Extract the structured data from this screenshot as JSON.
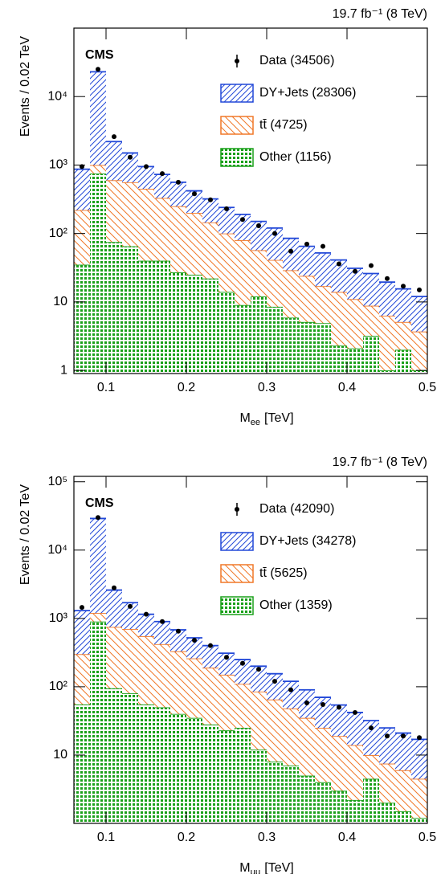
{
  "chart_data": [
    {
      "type": "histogram",
      "lumi": "19.7 fb⁻¹ (8 TeV)",
      "label": "CMS",
      "x_label": [
        "M",
        "ee",
        "[TeV]"
      ],
      "y_label": "Events / 0.02 TeV",
      "log_y": true,
      "legend": "upper right",
      "bins": [
        0.06,
        0.08,
        0.1,
        0.12,
        0.14,
        0.16,
        0.18,
        0.2,
        0.22,
        0.24,
        0.26,
        0.28,
        0.3,
        0.32,
        0.34,
        0.36,
        0.38,
        0.4,
        0.42,
        0.44,
        0.46,
        0.48,
        0.5
      ],
      "xlim": [
        0.06,
        0.5
      ],
      "xticks": [
        0.1,
        0.2,
        0.3,
        0.4,
        0.5
      ],
      "ylim": [
        0.9,
        100000
      ],
      "yticks": [
        1,
        10,
        {
          "value": 100,
          "label": "10²"
        },
        {
          "value": 1000,
          "label": "10³"
        },
        {
          "value": 10000,
          "label": "10⁴"
        }
      ],
      "series": [
        {
          "name": "Data (34506)",
          "color": "#000000",
          "style": "points",
          "values": [
            950,
            25000,
            2600,
            1300,
            950,
            750,
            560,
            380,
            310,
            230,
            160,
            130,
            100,
            55,
            70,
            65,
            36,
            28,
            34,
            22,
            17,
            15
          ]
        },
        {
          "name": "DY+Jets (28306)",
          "color": "#2248d8",
          "style": "stack",
          "pattern": "forward-hatch",
          "values": [
            650,
            22000,
            1600,
            940,
            500,
            400,
            310,
            220,
            175,
            140,
            110,
            93,
            79,
            56,
            41,
            35,
            27,
            20,
            17.2,
            13.2,
            10.4,
            8.3
          ]
        },
        {
          "name": "tt̄ (4725)",
          "color": "#f07828",
          "style": "stack",
          "pattern": "back-hatch",
          "values": [
            185,
            250,
            525,
            495,
            410,
            290,
            223,
            175,
            123,
            86,
            71,
            45,
            32.5,
            23.1,
            18.9,
            12.1,
            11.7,
            8.9,
            5.6,
            5.3,
            3.1,
            2.7
          ]
        },
        {
          "name": "Other (1156)",
          "color": "#1aa01a",
          "style": "stack",
          "pattern": "dots",
          "values": [
            35,
            750,
            75,
            65,
            40,
            40,
            27,
            25,
            22,
            14,
            9,
            12,
            8.5,
            5.9,
            5.1,
            4.9,
            2.3,
            2.1,
            3.2,
            1.0,
            2.0,
            1.0
          ]
        }
      ]
    },
    {
      "type": "histogram",
      "lumi": "19.7 fb⁻¹ (8 TeV)",
      "label": "CMS",
      "x_label": [
        "M",
        "μμ",
        "[TeV]"
      ],
      "y_label": "Events / 0.02 TeV",
      "log_y": true,
      "legend": "upper right",
      "bins": [
        0.06,
        0.08,
        0.1,
        0.12,
        0.14,
        0.16,
        0.18,
        0.2,
        0.22,
        0.24,
        0.26,
        0.28,
        0.3,
        0.32,
        0.34,
        0.36,
        0.38,
        0.4,
        0.42,
        0.44,
        0.46,
        0.48,
        0.5
      ],
      "xlim": [
        0.06,
        0.5
      ],
      "xticks": [
        0.1,
        0.2,
        0.3,
        0.4,
        0.5
      ],
      "ylim": [
        1,
        120000
      ],
      "yticks": [
        10,
        {
          "value": 100,
          "label": "10²"
        },
        {
          "value": 1000,
          "label": "10³"
        },
        {
          "value": 10000,
          "label": "10⁴"
        },
        {
          "value": 100000,
          "label": "10⁵"
        }
      ],
      "series": [
        {
          "name": "Data (42090)",
          "color": "#000000",
          "style": "points",
          "values": [
            1450,
            30000,
            2800,
            1500,
            1150,
            900,
            650,
            480,
            400,
            270,
            220,
            180,
            120,
            90,
            58,
            55,
            50,
            42,
            25,
            19,
            19,
            18
          ]
        },
        {
          "name": "DY+Jets (34278)",
          "color": "#2248d8",
          "style": "stack",
          "pattern": "forward-hatch",
          "values": [
            1000,
            27800,
            1850,
            1000,
            600,
            480,
            350,
            260,
            210,
            160,
            140,
            115,
            90,
            72,
            55,
            45,
            35,
            28,
            22,
            17.5,
            15,
            12.5
          ]
        },
        {
          "name": "tt̄ (5625)",
          "color": "#f07828",
          "style": "stack",
          "pattern": "back-hatch",
          "values": [
            245,
            300,
            655,
            620,
            495,
            370,
            290,
            225,
            162,
            127,
            85,
            73,
            57,
            41,
            30,
            21,
            16,
            11.8,
            5.5,
            5.5,
            4.5,
            3.3
          ]
        },
        {
          "name": "Other (1359)",
          "color": "#1aa01a",
          "style": "stack",
          "pattern": "dots",
          "values": [
            55,
            900,
            95,
            80,
            55,
            50,
            40,
            35,
            28,
            23,
            25,
            12,
            8,
            7,
            5,
            4,
            3,
            2.2,
            4.5,
            2,
            1.5,
            1.2
          ]
        }
      ]
    }
  ]
}
